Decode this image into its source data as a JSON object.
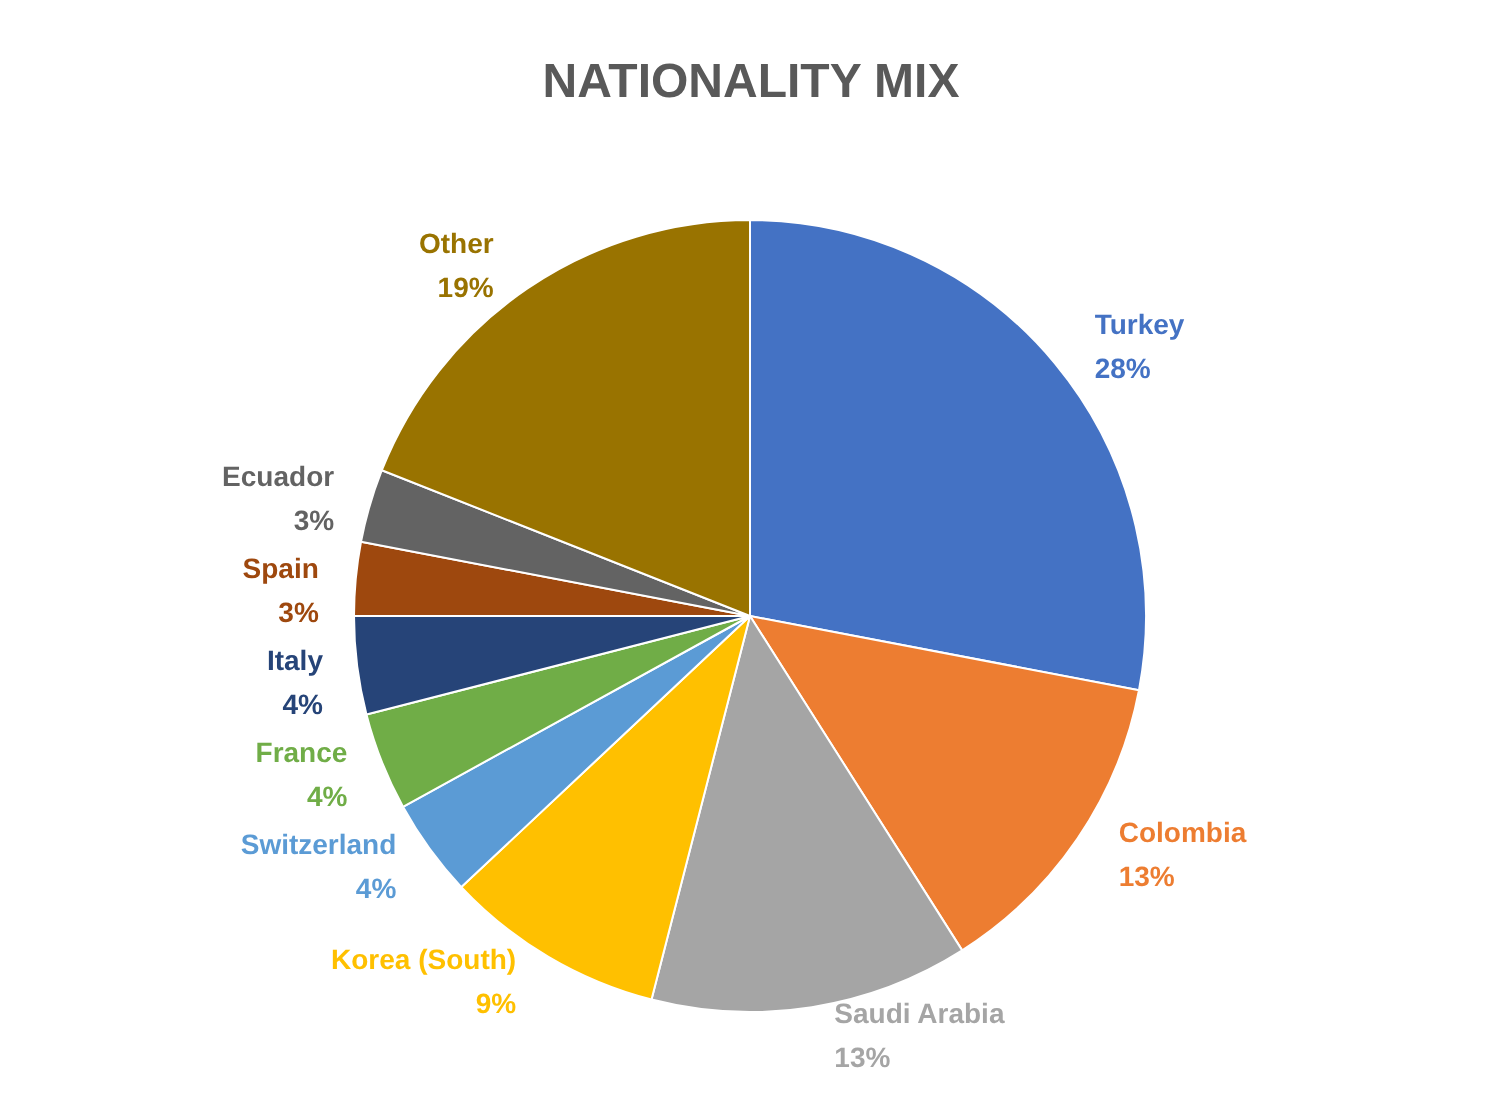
{
  "chart_data": {
    "type": "pie",
    "title": "NATIONALITY MIX",
    "categories": [
      "Turkey",
      "Colombia",
      "Saudi Arabia",
      "Korea (South)",
      "Switzerland",
      "France",
      "Italy",
      "Spain",
      "Ecuador",
      "Other"
    ],
    "values": [
      28,
      13,
      13,
      9,
      4,
      4,
      4,
      3,
      3,
      19
    ],
    "value_labels": [
      "28%",
      "13%",
      "13%",
      "9%",
      "4%",
      "4%",
      "4%",
      "3%",
      "3%",
      "19%"
    ],
    "colors": [
      "#4472c4",
      "#ed7d31",
      "#a5a5a5",
      "#ffc000",
      "#5b9bd5",
      "#70ad47",
      "#264478",
      "#9e480e",
      "#636363",
      "#997300"
    ],
    "legend": false
  }
}
